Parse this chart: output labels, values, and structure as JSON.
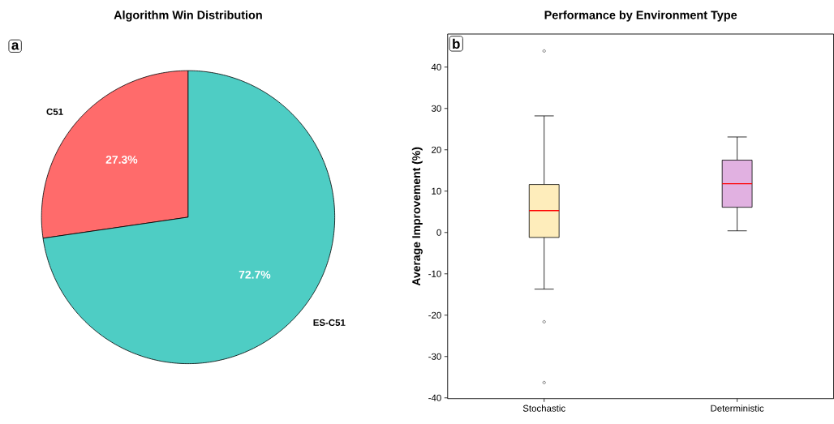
{
  "chart_data": [
    {
      "type": "pie",
      "title": "Algorithm Win Distribution",
      "categories": [
        "C51",
        "ES-C51"
      ],
      "values": [
        27.3,
        72.7
      ],
      "colors": [
        "#ff6b6b",
        "#4ecdc4"
      ],
      "value_labels": [
        "27.3%",
        "72.7%"
      ],
      "annotations": [
        "a"
      ]
    },
    {
      "type": "box",
      "title": "Performance by Environment Type",
      "ylabel": "Average Improvement (%)",
      "categories": [
        "Stochastic",
        "Deterministic"
      ],
      "colors": [
        "#feedbb",
        "#e1b1e1"
      ],
      "boxes": [
        {
          "low": -13.7,
          "q1": -1.2,
          "median": 5.3,
          "q3": 11.6,
          "high": 28.2,
          "outliers": [
            43.9,
            -21.6,
            -36.3
          ]
        },
        {
          "low": 0.4,
          "q1": 6.1,
          "median": 11.8,
          "q3": 17.5,
          "high": 23.1
        }
      ],
      "ylim": [
        -40.2,
        48
      ],
      "yticks": [
        -40,
        -30,
        -20,
        -10,
        0,
        10,
        20,
        30,
        40
      ],
      "annotations": [
        "b"
      ]
    }
  ]
}
